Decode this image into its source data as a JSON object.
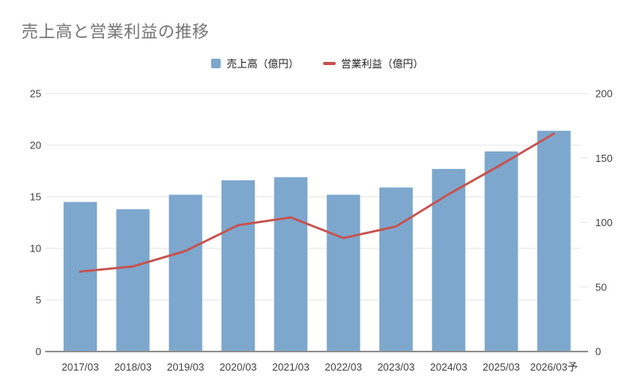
{
  "chart": {
    "title": "売上高と営業利益の推移",
    "legend": [
      {
        "label": "売上高（億円）",
        "series_type": "bar"
      },
      {
        "label": "営業利益（億円）",
        "series_type": "line"
      }
    ]
  },
  "colors": {
    "bar": "#7DA7CD",
    "line": "#C8514D",
    "title_text": "#757575",
    "tick_text": "#424242",
    "legend_text": "#212121",
    "gridline": "#E3E3E3",
    "baseline": "#8F8F8F",
    "background": "#FFFFFF"
  },
  "chart_data": {
    "type": "bar",
    "subtype": "combo-bar-line-dual-axis",
    "title": "売上高と営業利益の推移",
    "categories": [
      "2017/03",
      "2018/03",
      "2019/03",
      "2020/03",
      "2021/03",
      "2022/03",
      "2023/03",
      "2024/03",
      "2025/03",
      "2026/03予"
    ],
    "series": [
      {
        "name": "売上高（億円）",
        "chart_type": "bar",
        "axis": "left",
        "color": "#7DA7CD",
        "values": [
          14.5,
          13.8,
          15.2,
          16.6,
          16.9,
          15.2,
          15.9,
          17.7,
          19.4,
          21.4
        ]
      },
      {
        "name": "営業利益（億円）",
        "chart_type": "line",
        "axis": "right",
        "color": "#C8514D",
        "values": [
          62,
          66,
          78,
          98,
          104,
          88,
          97,
          122,
          145,
          169
        ]
      }
    ],
    "left_axis": {
      "min": 0,
      "max": 25,
      "ticks": [
        0,
        5,
        10,
        15,
        20,
        25
      ]
    },
    "right_axis": {
      "min": 0,
      "max": 200,
      "ticks": [
        0,
        50,
        100,
        150,
        200
      ]
    },
    "grid": true,
    "legend_position": "top"
  }
}
